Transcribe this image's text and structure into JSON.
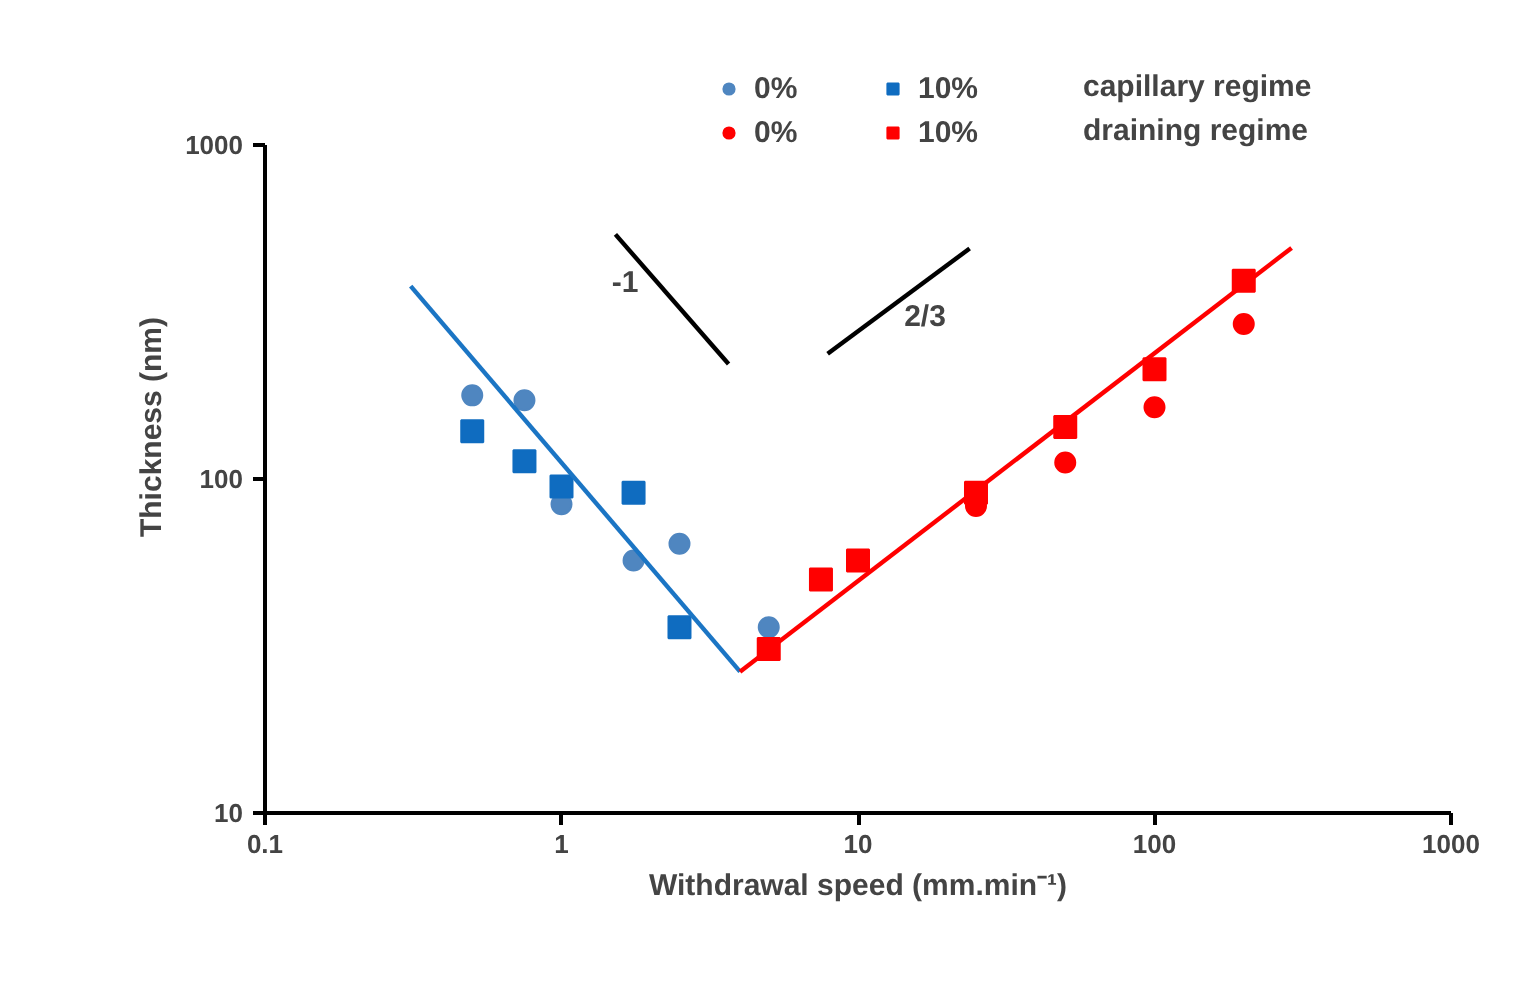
{
  "chart_data": {
    "type": "scatter",
    "xlabel": "Withdrawal speed (mm.min⁻¹)",
    "ylabel": "Thickness (nm)",
    "log": "xy",
    "xlim": [
      0.1,
      1000
    ],
    "ylim": [
      10,
      1000
    ],
    "xticks": [
      0.1,
      1,
      10,
      100,
      1000
    ],
    "yticks": [
      10,
      100,
      1000
    ],
    "grid": false,
    "legend": "top right",
    "series": [
      {
        "name": "0%",
        "marker": "circle",
        "color": "#4f86c0",
        "x": [
          0.5,
          0.75,
          1,
          1.75,
          2.5,
          5
        ],
        "values": [
          178,
          172,
          84,
          57,
          64,
          36
        ]
      },
      {
        "name": "10%",
        "marker": "square",
        "color": "#0f6cc0",
        "x": [
          0.5,
          0.75,
          1,
          1.75,
          2.5
        ],
        "values": [
          139,
          113,
          95,
          91,
          36
        ]
      },
      {
        "name": "0%",
        "marker": "circle",
        "color": "#ff0000",
        "x": [
          25,
          50,
          100,
          200
        ],
        "values": [
          83,
          112,
          164,
          291
        ]
      },
      {
        "name": "10%",
        "marker": "square",
        "color": "#ff0000",
        "x": [
          5,
          7.5,
          10,
          25,
          50,
          100,
          200
        ],
        "values": [
          31,
          50,
          57,
          91,
          143,
          213,
          392
        ]
      },
      {
        "type": "line",
        "color": "#1b75c4",
        "x": [
          0.31,
          4
        ],
        "values": [
          378,
          26.5
        ]
      },
      {
        "type": "line",
        "color": "#ff0000",
        "x": [
          4,
          290
        ],
        "values": [
          26.5,
          492
        ]
      },
      {
        "type": "line",
        "color": "#000000",
        "x": [
          1.52,
          3.66
        ],
        "values": [
          540,
          221
        ]
      },
      {
        "type": "line",
        "color": "#000000",
        "x": [
          7.9,
          23.8
        ],
        "values": [
          237,
          490
        ]
      }
    ],
    "annotations": [
      "capillary regime",
      "draining regime",
      "-1",
      "2/3"
    ]
  }
}
